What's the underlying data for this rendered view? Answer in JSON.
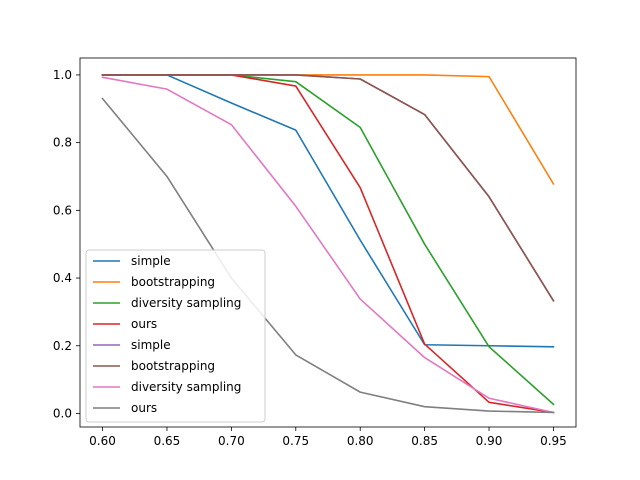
{
  "chart_data": {
    "type": "line",
    "title": "",
    "xlabel": "",
    "ylabel": "",
    "xlim": [
      0.5825,
      0.9675
    ],
    "ylim": [
      -0.04,
      1.05
    ],
    "x": [
      0.6,
      0.65,
      0.7,
      0.75,
      0.8,
      0.85,
      0.9,
      0.95
    ],
    "xticks": [
      "0.60",
      "0.65",
      "0.70",
      "0.75",
      "0.80",
      "0.85",
      "0.90",
      "0.95"
    ],
    "yticks": [
      "0.0",
      "0.2",
      "0.4",
      "0.6",
      "0.8",
      "1.0"
    ],
    "grid": false,
    "legend_location": "lower-left",
    "series": [
      {
        "name": "simple",
        "color": "#1f77b4",
        "values": [
          1.0,
          1.0,
          0.917,
          0.837,
          0.512,
          0.203,
          0.2,
          0.197
        ]
      },
      {
        "name": "bootstrapping",
        "color": "#ff7f0e",
        "values": [
          1.0,
          1.0,
          1.0,
          1.0,
          1.0,
          1.0,
          0.995,
          0.678
        ]
      },
      {
        "name": "diversity sampling",
        "color": "#2ca02c",
        "values": [
          1.0,
          1.0,
          1.0,
          0.98,
          0.845,
          0.5,
          0.197,
          0.027
        ]
      },
      {
        "name": "ours",
        "color": "#d62728",
        "values": [
          1.0,
          1.0,
          1.0,
          0.967,
          0.667,
          0.205,
          0.033,
          0.003
        ]
      },
      {
        "name": "simple",
        "color": "#9467bd",
        "values": [
          1.0,
          1.0,
          1.0,
          1.0,
          0.988,
          0.883,
          0.64,
          0.333
        ]
      },
      {
        "name": "bootstrapping",
        "color": "#8c564b",
        "values": [
          1.0,
          1.0,
          1.0,
          1.0,
          0.988,
          0.883,
          0.64,
          0.333
        ]
      },
      {
        "name": "diversity sampling",
        "color": "#e377c2",
        "values": [
          0.993,
          0.958,
          0.853,
          0.612,
          0.338,
          0.165,
          0.045,
          0.003
        ]
      },
      {
        "name": "ours",
        "color": "#7f7f7f",
        "values": [
          0.93,
          0.7,
          0.4,
          0.173,
          0.063,
          0.02,
          0.007,
          0.003
        ]
      }
    ]
  }
}
